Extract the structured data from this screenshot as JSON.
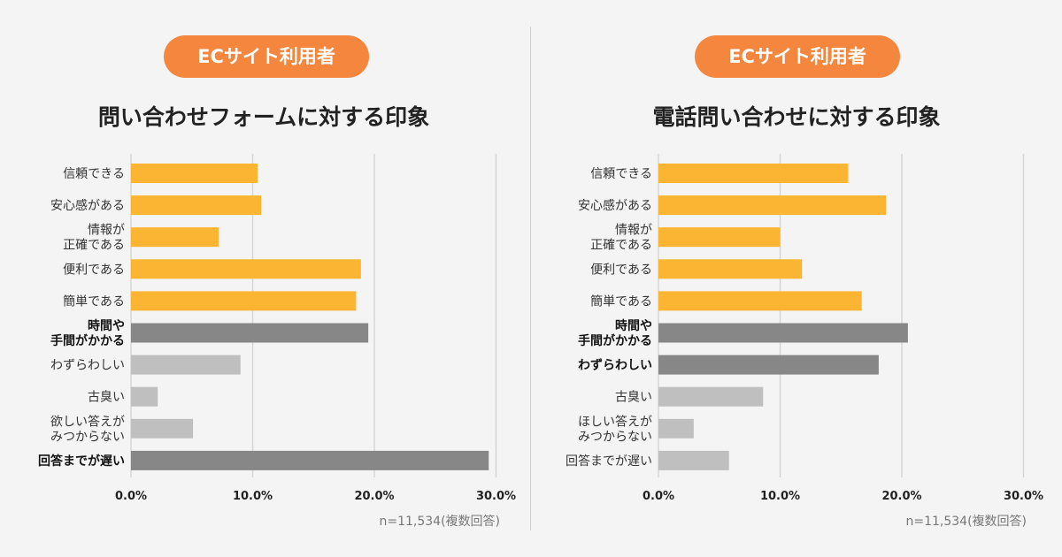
{
  "colors": {
    "background": "#f4f4f4",
    "accent": "#f5863d",
    "positive": "#fbb532",
    "negative_strong": "#878787",
    "negative_light": "#bfbfbf",
    "grid": "#d6d6d6"
  },
  "chart_data": [
    {
      "type": "bar",
      "orientation": "horizontal",
      "badge": "ECサイト利用者",
      "title": "問い合わせフォームに対する印象",
      "xlim": [
        0,
        30
      ],
      "xticks": [
        "0.0%",
        "10.0%",
        "20.0%",
        "30.0%"
      ],
      "grid": true,
      "note": "n=11,534(複数回答)",
      "categories": [
        {
          "lines": [
            "信頼できる"
          ],
          "value": 10.4,
          "group": "positive",
          "bold": false
        },
        {
          "lines": [
            "安心感がある"
          ],
          "value": 10.7,
          "group": "positive",
          "bold": false
        },
        {
          "lines": [
            "情報が",
            "正確である"
          ],
          "value": 7.2,
          "group": "positive",
          "bold": false
        },
        {
          "lines": [
            "便利である"
          ],
          "value": 18.9,
          "group": "positive",
          "bold": false
        },
        {
          "lines": [
            "簡単である"
          ],
          "value": 18.5,
          "group": "positive",
          "bold": false
        },
        {
          "lines": [
            "時間や",
            "手間がかかる"
          ],
          "value": 19.5,
          "group": "negative_strong",
          "bold": true
        },
        {
          "lines": [
            "わずらわしい"
          ],
          "value": 9.0,
          "group": "negative_light",
          "bold": false
        },
        {
          "lines": [
            "古臭い"
          ],
          "value": 2.2,
          "group": "negative_light",
          "bold": false
        },
        {
          "lines": [
            "欲しい答えが",
            "みつからない"
          ],
          "value": 5.1,
          "group": "negative_light",
          "bold": false
        },
        {
          "lines": [
            "回答までが遅い"
          ],
          "value": 29.4,
          "group": "negative_strong",
          "bold": true
        }
      ]
    },
    {
      "type": "bar",
      "orientation": "horizontal",
      "badge": "ECサイト利用者",
      "title": "電話問い合わせに対する印象",
      "xlim": [
        0,
        30
      ],
      "xticks": [
        "0.0%",
        "10.0%",
        "20.0%",
        "30.0%"
      ],
      "grid": true,
      "note": "n=11,534(複数回答)",
      "categories": [
        {
          "lines": [
            "信頼できる"
          ],
          "value": 15.6,
          "group": "positive",
          "bold": false
        },
        {
          "lines": [
            "安心感がある"
          ],
          "value": 18.7,
          "group": "positive",
          "bold": false
        },
        {
          "lines": [
            "情報が",
            "正確である"
          ],
          "value": 10.0,
          "group": "positive",
          "bold": false
        },
        {
          "lines": [
            "便利である"
          ],
          "value": 11.8,
          "group": "positive",
          "bold": false
        },
        {
          "lines": [
            "簡単である"
          ],
          "value": 16.7,
          "group": "positive",
          "bold": false
        },
        {
          "lines": [
            "時間や",
            "手間がかかる"
          ],
          "value": 20.5,
          "group": "negative_strong",
          "bold": true
        },
        {
          "lines": [
            "わずらわしい"
          ],
          "value": 18.1,
          "group": "negative_strong",
          "bold": true
        },
        {
          "lines": [
            "古臭い"
          ],
          "value": 8.6,
          "group": "negative_light",
          "bold": false
        },
        {
          "lines": [
            "ほしい答えが",
            "みつからない"
          ],
          "value": 2.9,
          "group": "negative_light",
          "bold": false
        },
        {
          "lines": [
            "回答までが遅い"
          ],
          "value": 5.8,
          "group": "negative_light",
          "bold": false
        }
      ]
    }
  ]
}
